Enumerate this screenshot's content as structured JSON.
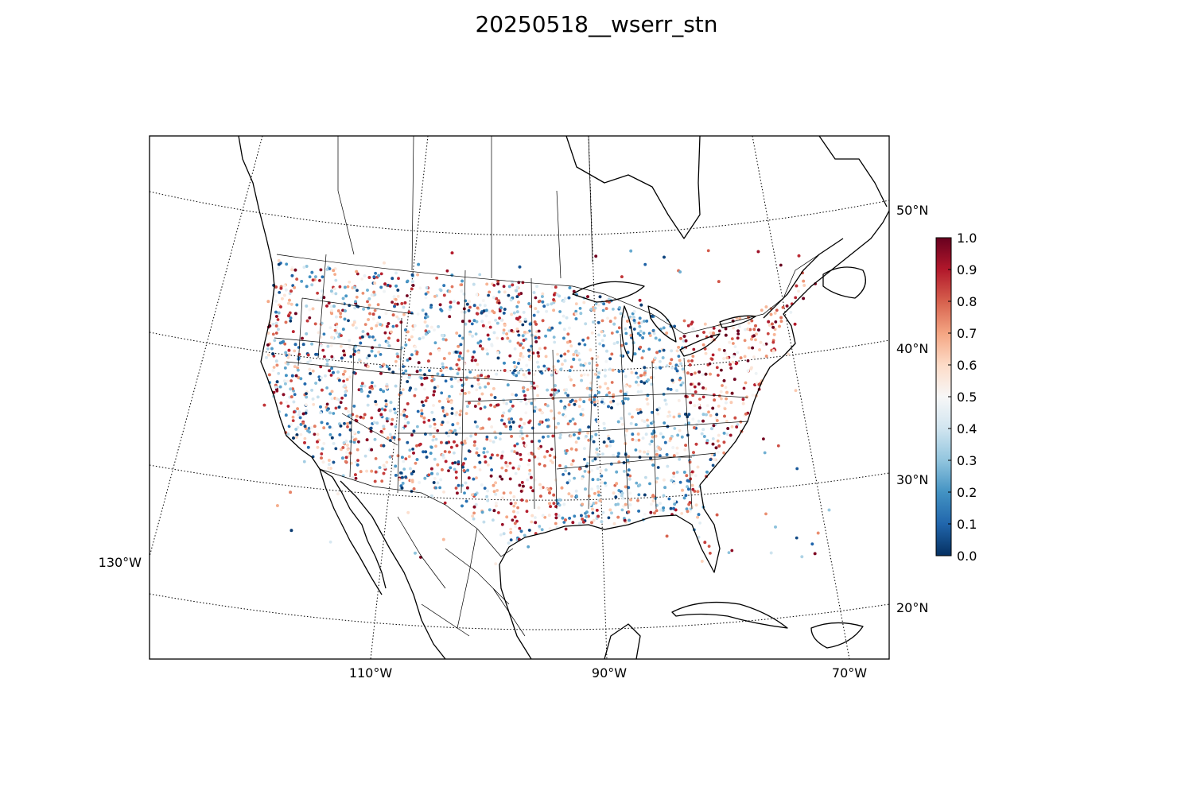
{
  "title": "20250518__wserr_stn",
  "map": {
    "lat_labels": [
      "50°N",
      "40°N",
      "30°N",
      "20°N"
    ],
    "lon_labels": [
      "130°W",
      "110°W",
      "90°W",
      "70°W"
    ],
    "land_line_color": "#000000",
    "graticule_style": "dotted"
  },
  "colorbar": {
    "colormap": "RdBu_r",
    "vmin": 0.0,
    "vmax": 1.0,
    "ticks": [
      "0.0",
      "0.1",
      "0.2",
      "0.3",
      "0.4",
      "0.5",
      "0.6",
      "0.7",
      "0.8",
      "0.9",
      "1.0"
    ],
    "colors": [
      "#053061",
      "#2166ac",
      "#4393c3",
      "#92c5de",
      "#d1e5f0",
      "#f7f7f7",
      "#fddbc7",
      "#f4a582",
      "#d6604d",
      "#b2182b",
      "#67001f"
    ]
  },
  "stations": {
    "marker": "dot",
    "value_range": [
      0.0,
      1.0
    ]
  }
}
